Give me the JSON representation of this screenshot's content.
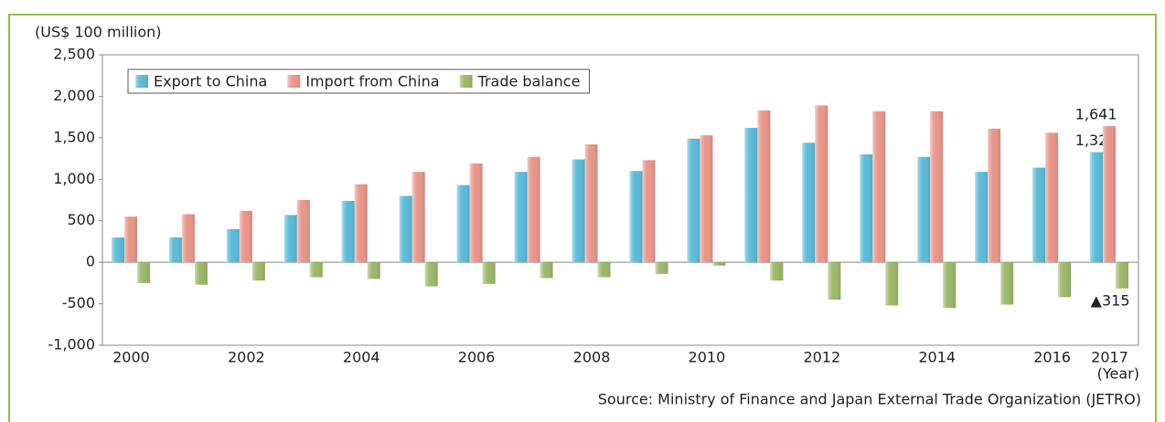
{
  "chart_data": {
    "type": "bar",
    "y_axis_label": "(US$ 100 million)",
    "x_axis_label": "(Year)",
    "source": "Source: Ministry of Finance and Japan External Trade Organization (JETRO)",
    "categories": [
      "2000",
      null,
      "2002",
      null,
      "2004",
      null,
      "2006",
      null,
      "2008",
      null,
      "2010",
      null,
      "2012",
      null,
      "2014",
      null,
      "2016",
      "2017"
    ],
    "series": [
      {
        "name": "Export to China",
        "color": "#5bbcd9",
        "values": [
          300,
          300,
          400,
          570,
          740,
          800,
          930,
          1090,
          1240,
          1100,
          1490,
          1620,
          1440,
          1300,
          1270,
          1090,
          1140,
          1327
        ],
        "value_labels": [
          null,
          null,
          null,
          null,
          null,
          null,
          null,
          null,
          null,
          null,
          null,
          null,
          null,
          null,
          null,
          null,
          null,
          "1,327"
        ]
      },
      {
        "name": "Import from China",
        "color": "#e8968a",
        "values": [
          550,
          580,
          620,
          750,
          940,
          1090,
          1190,
          1270,
          1420,
          1230,
          1530,
          1830,
          1890,
          1820,
          1820,
          1610,
          1560,
          1641
        ],
        "value_labels": [
          null,
          null,
          null,
          null,
          null,
          null,
          null,
          null,
          null,
          null,
          null,
          null,
          null,
          null,
          null,
          null,
          null,
          "1,641"
        ]
      },
      {
        "name": "Trade balance",
        "color": "#9cb86a",
        "values": [
          -250,
          -270,
          -220,
          -180,
          -200,
          -290,
          -260,
          -190,
          -180,
          -140,
          -40,
          -220,
          -450,
          -520,
          -550,
          -510,
          -420,
          -315
        ],
        "value_labels": [
          null,
          null,
          null,
          null,
          null,
          null,
          null,
          null,
          null,
          null,
          null,
          null,
          null,
          null,
          null,
          null,
          null,
          "▲315"
        ]
      }
    ],
    "ylim": [
      -1000,
      2500
    ],
    "yticks": [
      {
        "value": -1000,
        "label": "-1,000"
      },
      -500,
      0,
      500,
      {
        "value": 1000,
        "label": "1,000"
      },
      {
        "value": 1500,
        "label": "1,500"
      },
      {
        "value": 2000,
        "label": "2,000"
      },
      {
        "value": 2500,
        "label": "2,500"
      }
    ],
    "grid": false,
    "legend": "top-left"
  }
}
